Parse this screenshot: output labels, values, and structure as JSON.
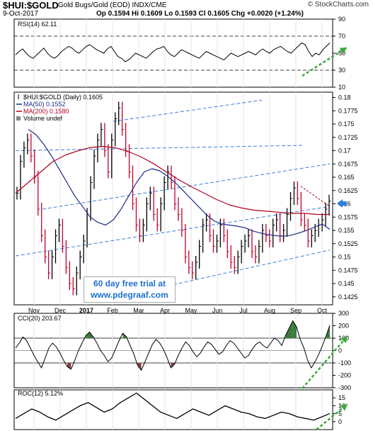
{
  "header": {
    "symbol": "$HUI:$GOLD",
    "name": "Gold Bugs/Gold (EOD)  INDX/CME",
    "date": "9-Oct-2017",
    "ohlc": "Op 0.1594  Hi 0.1609  Lo 0.1593  Cl 0.1605  Chg +0.0020 (+1.24%)",
    "brand": "© StockCharts.com"
  },
  "promo": {
    "line1": "60 day free trial at",
    "line2": "www.pdegraaf.com"
  },
  "colors": {
    "price": "#000000",
    "up_bar": "#000000",
    "down_bar": "#c0002a",
    "ma50": "#1c2a8a",
    "ma200": "#b00020",
    "channel": "#3b7fd9",
    "arrow_green": "#3aa83a",
    "arrow_blue": "#2f7fe0",
    "cci_fill_pos": "#3d7a3d",
    "cci_fill_neg": "#8a3b3b"
  },
  "chart_data": [
    {
      "type": "line",
      "label": "RSI(14) 62.11",
      "ylim": [
        10,
        90
      ],
      "yticks": [
        90,
        70,
        50,
        30,
        10
      ],
      "guides": [
        70,
        30
      ],
      "series": [
        {
          "name": "RSI(14)",
          "values": [
            48,
            52,
            55,
            50,
            46,
            44,
            48,
            52,
            56,
            50,
            46,
            44,
            47,
            52,
            55,
            58,
            56,
            52,
            50,
            54,
            58,
            60,
            57,
            54,
            52,
            50,
            55,
            58,
            52,
            46,
            44,
            40,
            42,
            46,
            50,
            48,
            46,
            44,
            48,
            52,
            55,
            56,
            58,
            52,
            48,
            46,
            50,
            54,
            52,
            50,
            48,
            46,
            44,
            48,
            52,
            50,
            48,
            46,
            44,
            42,
            46,
            50,
            48,
            46,
            48,
            50,
            52,
            50,
            48,
            52,
            55,
            52,
            50,
            54,
            56,
            58,
            55,
            52,
            50,
            54,
            58,
            62,
            60,
            52,
            46,
            50,
            48,
            54,
            58,
            62.11
          ]
        }
      ]
    },
    {
      "type": "line",
      "label": "$HUI:$GOLD (Daily) 0.1605",
      "xticks": [
        "Nov",
        "Dec",
        "2017",
        "Feb",
        "Mar",
        "Apr",
        "May",
        "Jun",
        "Jul",
        "Aug",
        "Sep",
        "Oct"
      ],
      "ylim": [
        0.141,
        0.181
      ],
      "yticks": [
        0.18,
        0.1775,
        0.175,
        0.1725,
        0.17,
        0.1675,
        0.165,
        0.1625,
        0.16,
        0.1575,
        0.155,
        0.1525,
        0.15,
        0.1475,
        0.145,
        0.1425
      ],
      "series": [
        {
          "name": "$HUI:$GOLD",
          "values": [
            0.162,
            0.168,
            0.1705,
            0.172,
            0.169,
            0.165,
            0.159,
            0.154,
            0.15,
            0.147,
            0.15,
            0.154,
            0.156,
            0.152,
            0.148,
            0.145,
            0.144,
            0.147,
            0.15,
            0.153,
            0.158,
            0.164,
            0.169,
            0.172,
            0.174,
            0.17,
            0.166,
            0.172,
            0.176,
            0.178,
            0.174,
            0.17,
            0.166,
            0.16,
            0.156,
            0.154,
            0.156,
            0.16,
            0.162,
            0.158,
            0.156,
            0.16,
            0.164,
            0.166,
            0.164,
            0.16,
            0.158,
            0.155,
            0.15,
            0.148,
            0.147,
            0.149,
            0.152,
            0.156,
            0.157,
            0.154,
            0.152,
            0.153,
            0.156,
            0.154,
            0.151,
            0.149,
            0.148,
            0.15,
            0.152,
            0.153,
            0.154,
            0.151,
            0.15,
            0.152,
            0.155,
            0.154,
            0.153,
            0.156,
            0.157,
            0.154,
            0.155,
            0.158,
            0.161,
            0.163,
            0.161,
            0.157,
            0.156,
            0.153,
            0.154,
            0.155,
            0.156,
            0.157,
            0.159,
            0.1605
          ]
        },
        {
          "name": "MA(50) 0.1552",
          "values": [
            0.174,
            0.173,
            0.1712,
            0.169,
            0.1665,
            0.164,
            0.1615,
            0.1595,
            0.1575,
            0.1565,
            0.156,
            0.157,
            0.159,
            0.1615,
            0.164,
            0.166,
            0.1666,
            0.1662,
            0.1652,
            0.164,
            0.1625,
            0.161,
            0.1595,
            0.158,
            0.1568,
            0.1562,
            0.156,
            0.1558,
            0.1555,
            0.1549,
            0.1545,
            0.1542,
            0.154,
            0.1539,
            0.1541,
            0.1545,
            0.155,
            0.1556,
            0.1562,
            0.1552
          ]
        },
        {
          "name": "MA(200) 0.1580",
          "values": [
            0.162,
            0.164,
            0.166,
            0.168,
            0.1692,
            0.17,
            0.1706,
            0.1708,
            0.1705,
            0.1698,
            0.1688,
            0.1675,
            0.166,
            0.1645,
            0.1632,
            0.162,
            0.1608,
            0.1598,
            0.1592,
            0.1588,
            0.1586,
            0.1584,
            0.1582,
            0.1582,
            0.158,
            0.158
          ]
        },
        {
          "name": "Volume undef",
          "values": []
        }
      ]
    },
    {
      "type": "line",
      "label": "CCI(20) 203.67",
      "ylim": [
        -300,
        300
      ],
      "yticks": [
        300,
        200,
        100,
        0,
        -100,
        -200,
        -300
      ],
      "guides": [
        100,
        -100
      ],
      "series": [
        {
          "name": "CCI(20)",
          "values": [
            20,
            60,
            110,
            80,
            20,
            -40,
            -90,
            -140,
            -60,
            20,
            60,
            30,
            -20,
            -80,
            -130,
            -150,
            -80,
            0,
            60,
            120,
            150,
            110,
            60,
            0,
            -40,
            -90,
            -60,
            10,
            80,
            140,
            110,
            40,
            -30,
            -120,
            -160,
            -90,
            -20,
            50,
            90,
            60,
            10,
            -60,
            -140,
            -110,
            -40,
            20,
            70,
            40,
            -10,
            -50,
            -20,
            30,
            70,
            50,
            10,
            -30,
            -10,
            40,
            80,
            60,
            20,
            -20,
            -60,
            -40,
            10,
            50,
            70,
            40,
            20,
            60,
            100,
            80,
            40,
            120,
            180,
            240,
            190,
            90,
            20,
            -80,
            -140,
            -90,
            -30,
            40,
            120,
            203.67
          ]
        }
      ]
    },
    {
      "type": "line",
      "label": "ROC(12) 5.12%",
      "ylim": [
        -5,
        20
      ],
      "yticks": [
        15,
        10,
        5,
        0
      ],
      "series": [
        {
          "name": "ROC(12)",
          "values": [
            2,
            5,
            8,
            6,
            3,
            1,
            4,
            7,
            10,
            12,
            9,
            6,
            8,
            12,
            15,
            18,
            14,
            10,
            6,
            4,
            2,
            5,
            8,
            6,
            4,
            7,
            10,
            8,
            6,
            5,
            3,
            2,
            4,
            6,
            5,
            3,
            2,
            1,
            3,
            5.12
          ]
        }
      ]
    }
  ]
}
